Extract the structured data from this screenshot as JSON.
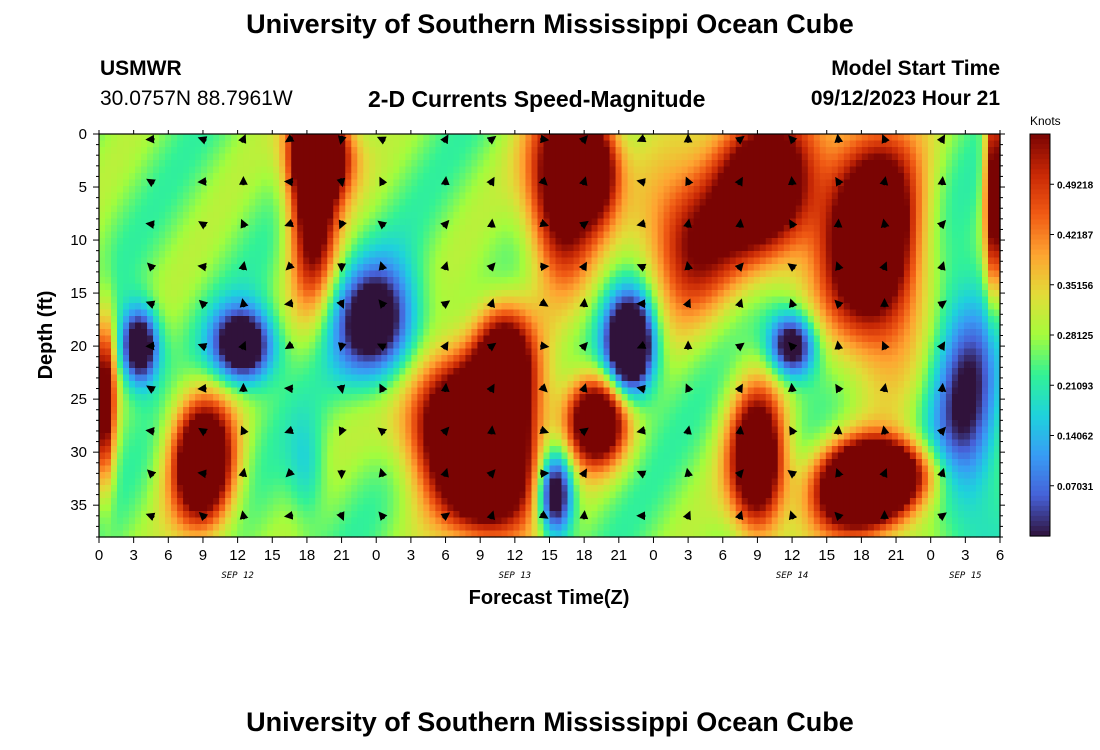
{
  "header": {
    "title": "University of Southern Mississippi Ocean Cube",
    "station": "USMWR",
    "coords": "30.0757N  88.7961W",
    "subtitle": "2-D Currents Speed-Magnitude",
    "model_label": "Model Start Time",
    "model_time": "09/12/2023 Hour 21",
    "title_bottom": "University of Southern Mississippi Ocean Cube"
  },
  "chart_data": {
    "type": "heatmap",
    "title": "2-D Currents Speed-Magnitude",
    "xlabel": "Forecast Time(Z)",
    "ylabel": "Depth (ft)",
    "x_tick_labels": [
      "0",
      "3",
      "6",
      "9",
      "12",
      "15",
      "18",
      "21",
      "0",
      "3",
      "6",
      "9",
      "12",
      "15",
      "18",
      "21",
      "0",
      "3",
      "6",
      "9",
      "12",
      "15",
      "18",
      "21",
      "0",
      "3",
      "6"
    ],
    "x_hours_range": [
      0,
      78
    ],
    "date_labels": [
      {
        "label": "SEP 12",
        "hour": 12
      },
      {
        "label": "SEP 13",
        "hour": 36
      },
      {
        "label": "SEP 14",
        "hour": 60
      },
      {
        "label": "SEP 15",
        "hour": 75
      }
    ],
    "y_ticks": [
      0,
      5,
      10,
      15,
      20,
      25,
      30,
      35
    ],
    "y_tick_labels": [
      "0",
      "5",
      "10",
      "15",
      "20",
      "25",
      "30",
      "35"
    ],
    "ylim": [
      0,
      38
    ],
    "y_inverted": true,
    "colorbar": {
      "unit": "Knots",
      "labels": [
        "0.49218",
        "0.42187",
        "0.35156",
        "0.28125",
        "0.21093",
        "0.14062",
        "0.07031"
      ],
      "range": [
        0,
        0.5625
      ]
    },
    "hotspots": [
      {
        "h": 18.5,
        "d": 5,
        "rh": 2.0,
        "rd": 10.0,
        "v": 0.44
      },
      {
        "h": 19.5,
        "d": 2,
        "rh": 2.5,
        "rd": 4.0,
        "v": 0.4
      },
      {
        "h": 9,
        "d": 31,
        "rh": 2.6,
        "rd": 6.0,
        "v": 0.52
      },
      {
        "h": 3.5,
        "d": 20,
        "rh": 1.6,
        "rd": 3.5,
        "v": -0.42
      },
      {
        "h": 12.5,
        "d": 20,
        "rh": 2.6,
        "rd": 3.5,
        "v": -0.42
      },
      {
        "h": 24,
        "d": 18,
        "rh": 3.5,
        "rd": 5.5,
        "v": -0.36
      },
      {
        "h": 18,
        "d": 32,
        "rh": 1.6,
        "rd": 5.0,
        "v": -0.1
      },
      {
        "h": 32,
        "d": 27,
        "rh": 5.0,
        "rd": 6.0,
        "v": 0.58
      },
      {
        "h": 34,
        "d": 33,
        "rh": 4.0,
        "rd": 5.5,
        "v": 0.45
      },
      {
        "h": 35,
        "d": 21,
        "rh": 2.5,
        "rd": 5.0,
        "v": 0.38
      },
      {
        "h": 43,
        "d": 27,
        "rh": 2.5,
        "rd": 4.0,
        "v": 0.5
      },
      {
        "h": 40,
        "d": 5,
        "rh": 2.8,
        "rd": 8.0,
        "v": 0.45
      },
      {
        "h": 43,
        "d": 3,
        "rh": 2.0,
        "rd": 5.0,
        "v": 0.38
      },
      {
        "h": 39.5,
        "d": 34,
        "rh": 1.5,
        "rd": 4.0,
        "v": -0.42
      },
      {
        "h": 46,
        "d": 20,
        "rh": 2.0,
        "rd": 4.5,
        "v": -0.55
      },
      {
        "h": 51,
        "d": 10,
        "rh": 4.0,
        "rd": 7.0,
        "v": 0.28
      },
      {
        "h": 57.5,
        "d": 5,
        "rh": 4.5,
        "rd": 7.0,
        "v": 0.48
      },
      {
        "h": 57,
        "d": 31,
        "rh": 2.3,
        "rd": 6.5,
        "v": 0.5
      },
      {
        "h": 60,
        "d": 20,
        "rh": 2.0,
        "rd": 3.0,
        "v": -0.38
      },
      {
        "h": 67,
        "d": 10,
        "rh": 4.0,
        "rd": 10.0,
        "v": 0.55
      },
      {
        "h": 66,
        "d": 34,
        "rh": 4.0,
        "rd": 4.0,
        "v": 0.5
      },
      {
        "h": 68,
        "d": 32,
        "rh": 4.0,
        "rd": 3.0,
        "v": 0.45
      },
      {
        "h": 75,
        "d": 25,
        "rh": 3.0,
        "rd": 12.0,
        "v": -0.25
      },
      {
        "h": 77.5,
        "d": 5,
        "rh": 0.8,
        "rd": 10.0,
        "v": 0.4
      },
      {
        "h": 0.5,
        "d": 25,
        "rh": 0.9,
        "rd": 8.0,
        "v": 0.35
      }
    ],
    "arrow_hours": [
      4.5,
      9,
      12.5,
      16.5,
      21,
      24.5,
      30,
      34,
      38.5,
      42,
      47,
      51,
      55.5,
      60,
      64,
      68,
      73
    ],
    "arrow_depths": [
      0.5,
      4.5,
      8.5,
      12.5,
      16,
      20,
      24,
      28,
      32,
      36
    ],
    "arrow_column_dirs": [
      200,
      200,
      270,
      160,
      90,
      230,
      300,
      300,
      20,
      300,
      180,
      270,
      300,
      240,
      250,
      270,
      300
    ]
  }
}
